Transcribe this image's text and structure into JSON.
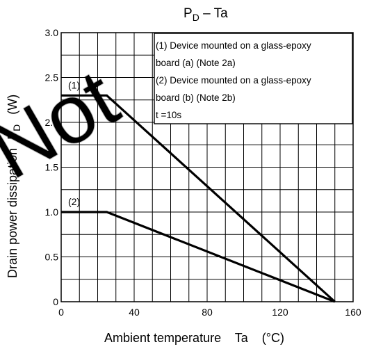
{
  "chart_data": {
    "type": "line",
    "title_main": "P",
    "title_sub": "D",
    "title_rest": " – Ta",
    "xlabel": "Ambient temperature    Ta    (°C)",
    "ylabel_text": "Drain power dissipation",
    "ylabel_symbol": "P",
    "ylabel_symbol_sub": "D",
    "ylabel_unit": "(W)",
    "xlim": [
      0,
      160
    ],
    "ylim": [
      0,
      3.0
    ],
    "x_ticks": [
      "0",
      "40",
      "80",
      "120",
      "160"
    ],
    "y_ticks": [
      "0",
      "0.5",
      "1.0",
      "1.5",
      "2.0",
      "2.5",
      "3.0"
    ],
    "grid": true,
    "series": [
      {
        "name": "(1)",
        "points": [
          [
            0,
            2.3
          ],
          [
            25,
            2.3
          ],
          [
            150,
            0
          ]
        ]
      },
      {
        "name": "(2)",
        "points": [
          [
            0,
            1.0
          ],
          [
            25,
            1.0
          ],
          [
            150,
            0
          ]
        ]
      }
    ],
    "legend": {
      "position": "top-right",
      "lines": [
        "(1) Device mounted on a glass-epoxy",
        "board (a) (Note 2a)",
        "(2) Device mounted on a glass-epoxy",
        "board (b) (Note 2b)",
        "t  =10s"
      ]
    },
    "watermark": "Not"
  }
}
